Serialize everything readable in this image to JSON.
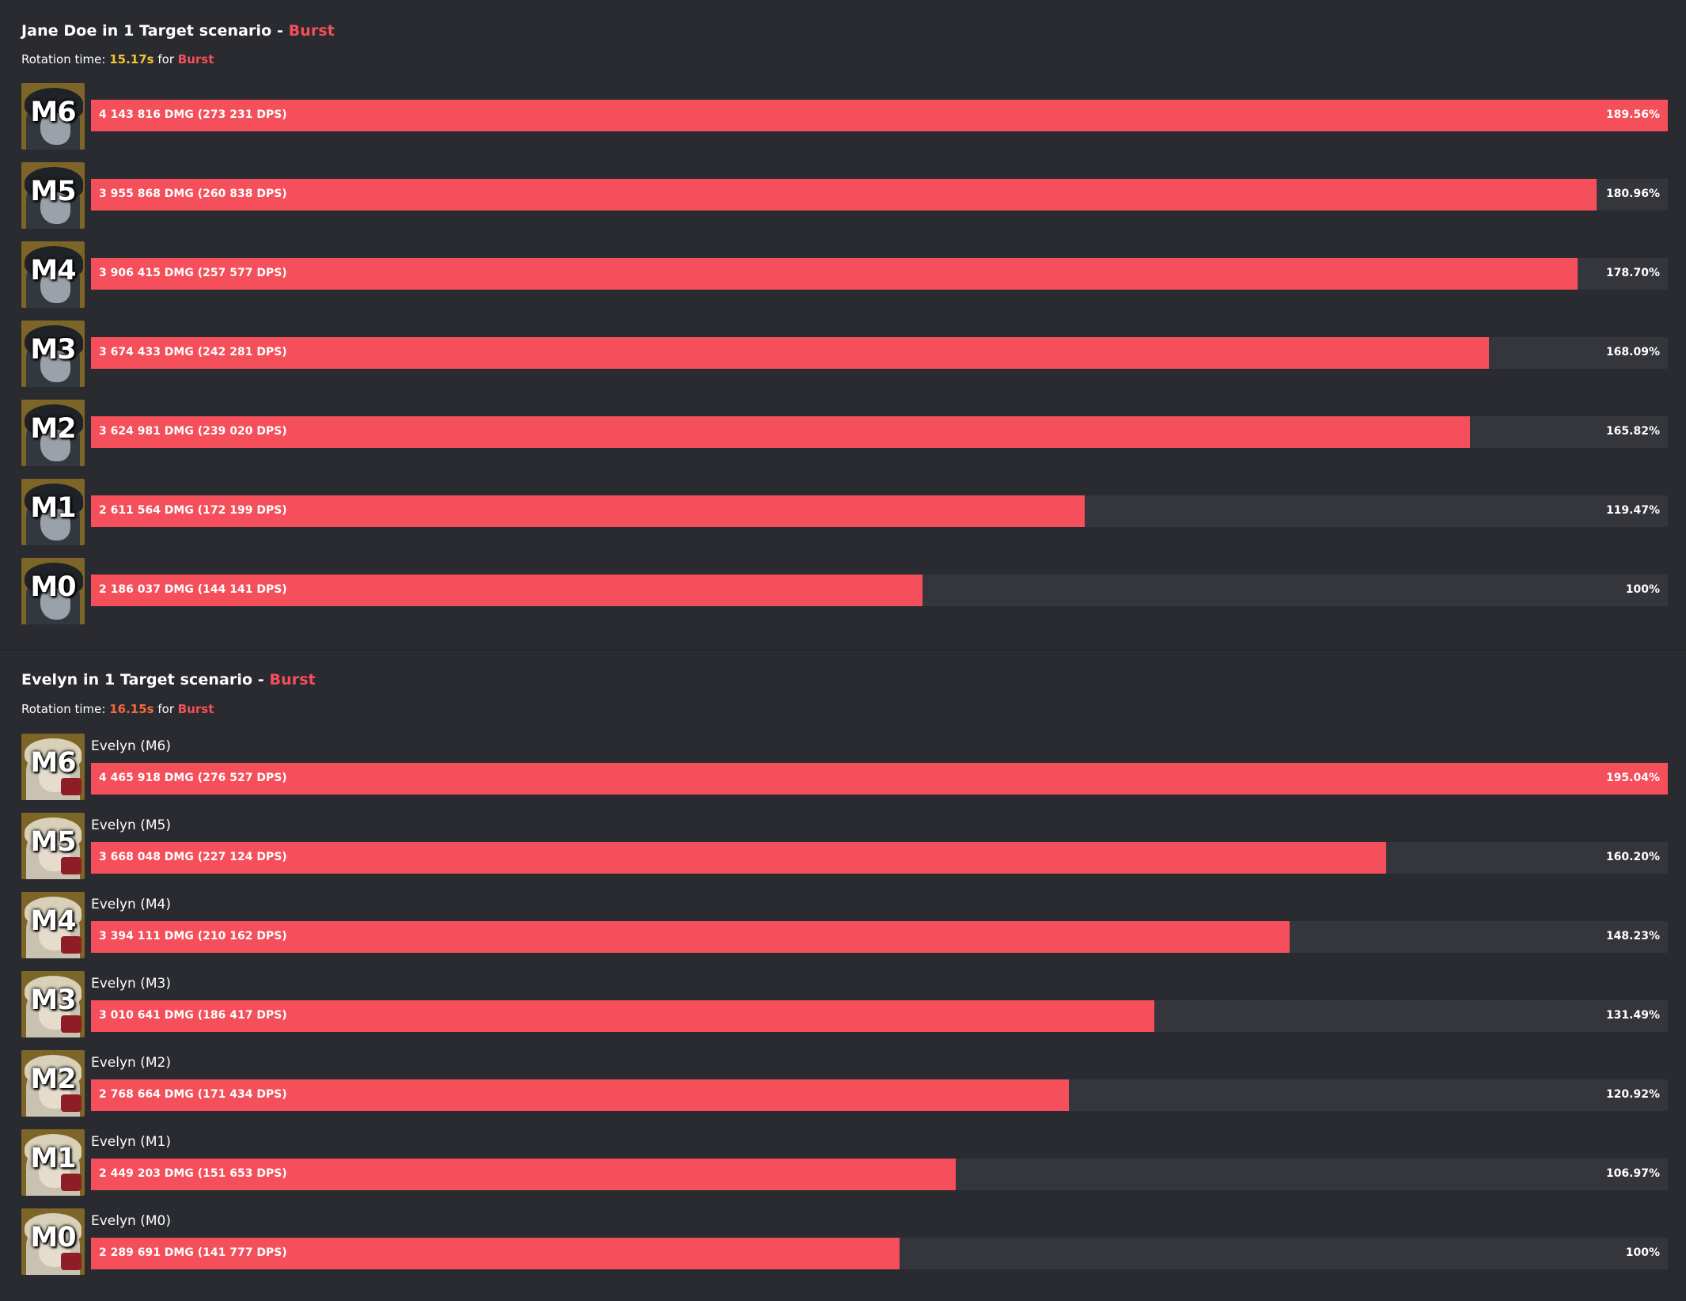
{
  "colors": {
    "background": "#2a2b30",
    "bar_fill": "#f44f5a",
    "bar_track": "#35363c",
    "mode_text": "#f44f5a",
    "jane_rotation_time": "#f2c436",
    "evelyn_rotation_time": "#f4683a"
  },
  "sections": [
    {
      "character": "Jane Doe",
      "title_text": "Jane Doe in 1 Target scenario - ",
      "mode": "Burst",
      "rotation_prefix": "Rotation time: ",
      "rotation_time": "15.17s",
      "rotation_for": " for ",
      "rotation_mode": "Burst",
      "show_names": false,
      "avatar_icon": "jane-doe-portrait",
      "rows": [
        {
          "label": "M6",
          "name": "",
          "dmg": "4 143 816 DMG (273 231 DPS)",
          "pct": "189.56%",
          "value": 189.56
        },
        {
          "label": "M5",
          "name": "",
          "dmg": "3 955 868 DMG (260 838 DPS)",
          "pct": "180.96%",
          "value": 180.96
        },
        {
          "label": "M4",
          "name": "",
          "dmg": "3 906 415 DMG (257 577 DPS)",
          "pct": "178.70%",
          "value": 178.7
        },
        {
          "label": "M3",
          "name": "",
          "dmg": "3 674 433 DMG (242 281 DPS)",
          "pct": "168.09%",
          "value": 168.09
        },
        {
          "label": "M2",
          "name": "",
          "dmg": "3 624 981 DMG (239 020 DPS)",
          "pct": "165.82%",
          "value": 165.82
        },
        {
          "label": "M1",
          "name": "",
          "dmg": "2 611 564 DMG (172 199 DPS)",
          "pct": "119.47%",
          "value": 119.47
        },
        {
          "label": "M0",
          "name": "",
          "dmg": "2 186 037 DMG (144 141 DPS)",
          "pct": "100%",
          "value": 100
        }
      ]
    },
    {
      "character": "Evelyn",
      "title_text": "Evelyn in 1 Target scenario - ",
      "mode": "Burst",
      "rotation_prefix": "Rotation time: ",
      "rotation_time": "16.15s",
      "rotation_for": " for ",
      "rotation_mode": "Burst",
      "show_names": true,
      "avatar_icon": "evelyn-portrait",
      "rows": [
        {
          "label": "M6",
          "name": "Evelyn (M6)",
          "dmg": "4 465 918 DMG (276 527 DPS)",
          "pct": "195.04%",
          "value": 195.04
        },
        {
          "label": "M5",
          "name": "Evelyn (M5)",
          "dmg": "3 668 048 DMG (227 124 DPS)",
          "pct": "160.20%",
          "value": 160.2
        },
        {
          "label": "M4",
          "name": "Evelyn (M4)",
          "dmg": "3 394 111 DMG (210 162 DPS)",
          "pct": "148.23%",
          "value": 148.23
        },
        {
          "label": "M3",
          "name": "Evelyn (M3)",
          "dmg": "3 010 641 DMG (186 417 DPS)",
          "pct": "131.49%",
          "value": 131.49
        },
        {
          "label": "M2",
          "name": "Evelyn (M2)",
          "dmg": "2 768 664 DMG (171 434 DPS)",
          "pct": "120.92%",
          "value": 120.92
        },
        {
          "label": "M1",
          "name": "Evelyn (M1)",
          "dmg": "2 449 203 DMG (151 653 DPS)",
          "pct": "106.97%",
          "value": 106.97
        },
        {
          "label": "M0",
          "name": "Evelyn (M0)",
          "dmg": "2 289 691 DMG (141 777 DPS)",
          "pct": "100%",
          "value": 100
        }
      ]
    }
  ]
}
